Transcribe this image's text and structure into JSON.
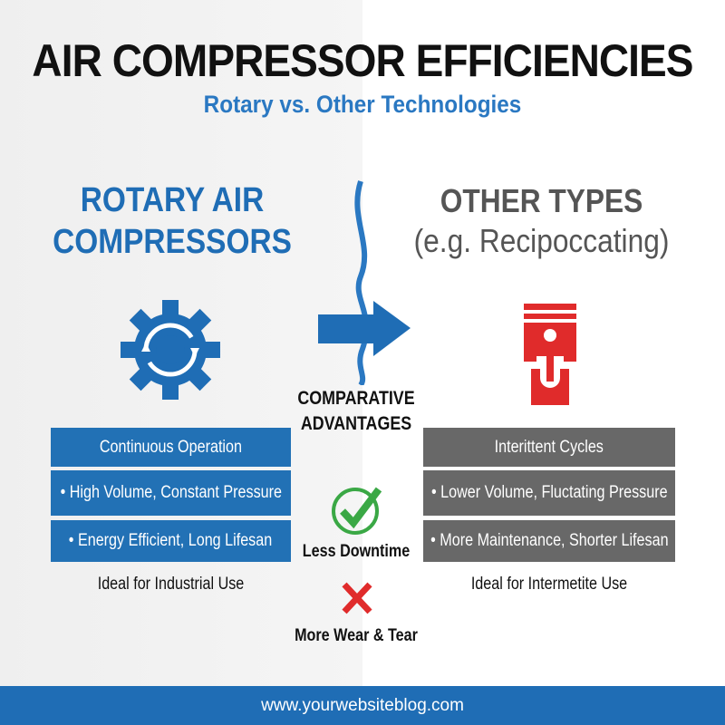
{
  "header": {
    "title": "AIR COMPRESSOR EFFICIENCIES",
    "subtitle": "Rotary vs. Other Technologies"
  },
  "left": {
    "heading_line1": "ROTARY AIR",
    "heading_line2": "COMPRESSORS",
    "icon": "gear-cycle-icon",
    "color": "#2271b5",
    "items": [
      "Continuous Operation",
      "• High Volume, Constant Pressure",
      "• Energy Efficient, Long Lifesan"
    ],
    "note": "Ideal for Industrial Use"
  },
  "right": {
    "heading_line1": "OTHER TYPES",
    "heading_line2": "(e.g. Recipoccating)",
    "icon": "piston-icon",
    "color": "#686868",
    "items": [
      "Interittent Cycles",
      "• Lower Volume, Fluctating Pressure",
      "• More Maintenance, Shorter Lifesan"
    ],
    "note": "Ideal for Intermetite Use"
  },
  "center": {
    "label_line1": "COMPARATIVE",
    "label_line2": "ADVANTAGES",
    "check_label": "Less Downtime",
    "cross_label": "More Wear & Tear",
    "check_color": "#3aa845",
    "cross_color": "#e02b2b"
  },
  "footer": {
    "url": "www.yourwebsiteblog.com"
  }
}
